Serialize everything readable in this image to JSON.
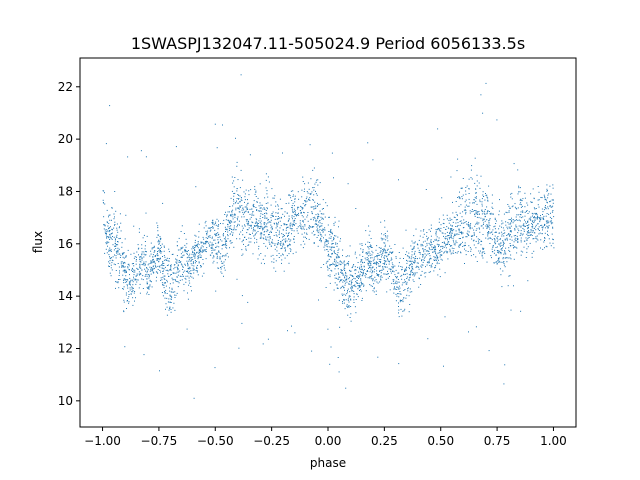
{
  "chart_data": {
    "type": "scatter",
    "title": "1SWASPJ132047.11-505024.9 Period 6056133.5s",
    "xlabel": "phase",
    "ylabel": "flux",
    "xlim": [
      -1.1,
      1.1
    ],
    "ylim": [
      9.0,
      23.1
    ],
    "xticks": [
      -1.0,
      -0.75,
      -0.5,
      -0.25,
      0.0,
      0.25,
      0.5,
      0.75,
      1.0
    ],
    "xtick_labels": [
      "−1.00",
      "−0.75",
      "−0.50",
      "−0.25",
      "0.00",
      "0.25",
      "0.50",
      "0.75",
      "1.00"
    ],
    "yticks": [
      10,
      12,
      14,
      16,
      18,
      20,
      22
    ],
    "ytick_labels": [
      "10",
      "12",
      "14",
      "16",
      "18",
      "20",
      "22"
    ],
    "grid": false,
    "marker_color": "#1f77b4",
    "series": [
      {
        "x": [
          -1.0,
          -0.975,
          -0.95,
          -0.925,
          -0.9,
          -0.875,
          -0.85,
          -0.825,
          -0.8,
          -0.775,
          -0.75,
          -0.725,
          -0.7,
          -0.675,
          -0.65,
          -0.625,
          -0.6,
          -0.575,
          -0.55,
          -0.525,
          -0.5,
          -0.475,
          -0.45,
          -0.425,
          -0.4,
          -0.375,
          -0.35,
          -0.325,
          -0.3,
          -0.275,
          -0.25,
          -0.225,
          -0.2,
          -0.175,
          -0.15,
          -0.125,
          -0.1,
          -0.075,
          -0.05,
          -0.025,
          0.0,
          0.025,
          0.05,
          0.075,
          0.1,
          0.125,
          0.15,
          0.175,
          0.2,
          0.225,
          0.25,
          0.275,
          0.3,
          0.325,
          0.35,
          0.375,
          0.4,
          0.425,
          0.45,
          0.475,
          0.5,
          0.525,
          0.55,
          0.575,
          0.6,
          0.625,
          0.65,
          0.675,
          0.7,
          0.725,
          0.75,
          0.775,
          0.8,
          0.825,
          0.85,
          0.875,
          0.9,
          0.925,
          0.95,
          0.975,
          1.0
        ],
        "y": [
          17.0,
          16.2,
          16.0,
          15.6,
          14.7,
          14.4,
          15.0,
          15.5,
          14.9,
          15.4,
          15.7,
          14.6,
          14.3,
          15.0,
          15.6,
          15.2,
          15.4,
          15.7,
          16.0,
          16.2,
          16.0,
          15.8,
          16.3,
          17.2,
          17.4,
          16.8,
          17.1,
          17.0,
          16.6,
          16.9,
          16.4,
          16.6,
          16.2,
          16.7,
          17.0,
          16.9,
          17.2,
          17.4,
          17.0,
          16.6,
          16.0,
          15.7,
          15.0,
          14.6,
          14.3,
          14.8,
          15.1,
          15.6,
          15.2,
          15.1,
          15.7,
          15.3,
          14.6,
          14.2,
          14.9,
          15.4,
          15.5,
          15.6,
          15.7,
          15.8,
          15.9,
          16.2,
          16.4,
          16.5,
          16.9,
          17.0,
          17.2,
          16.8,
          17.0,
          16.5,
          16.0,
          15.9,
          16.5,
          16.7,
          16.9,
          16.8,
          16.8,
          16.9,
          17.1,
          17.2,
          17.0
        ],
        "spread": [
          1.1,
          1.1,
          1.3,
          1.4,
          1.2,
          1.0,
          1.1,
          1.0,
          1.0,
          0.9,
          0.9,
          1.2,
          1.3,
          1.1,
          1.0,
          0.9,
          0.8,
          0.8,
          0.8,
          0.9,
          1.0,
          1.0,
          1.1,
          1.4,
          1.6,
          1.4,
          1.3,
          1.2,
          1.3,
          1.4,
          1.3,
          1.2,
          1.2,
          1.2,
          1.1,
          1.1,
          1.2,
          1.3,
          1.2,
          1.3,
          1.4,
          1.3,
          1.2,
          1.1,
          1.0,
          1.0,
          1.0,
          0.9,
          1.0,
          1.1,
          1.0,
          1.0,
          1.1,
          1.2,
          1.0,
          0.9,
          0.9,
          0.8,
          0.8,
          0.8,
          0.9,
          1.0,
          1.0,
          1.1,
          1.4,
          1.5,
          1.4,
          1.3,
          1.4,
          1.4,
          1.3,
          1.2,
          1.2,
          1.1,
          1.1,
          1.1,
          1.1,
          1.1,
          1.2,
          1.2,
          1.1
        ]
      }
    ]
  }
}
